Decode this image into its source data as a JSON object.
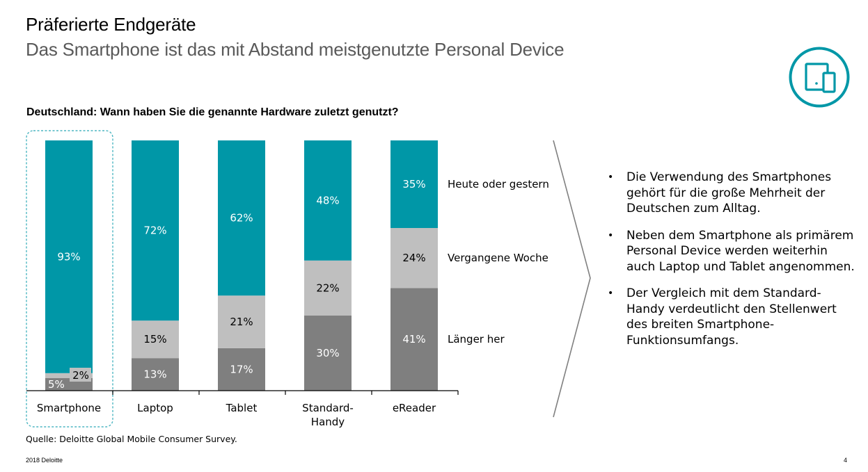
{
  "header": {
    "title": "Präferierte Endgeräte",
    "subtitle": "Das Smartphone ist das mit Abstand meistgenutzte Personal Device",
    "icon": "tablet-phone-icon"
  },
  "colors": {
    "accent": "#0097A7",
    "heute": "#0097A7",
    "woche": "#BFBFBF",
    "laenger": "#7F7F7F",
    "highlight_border": "#4DB6C2",
    "divider": "#808080"
  },
  "chart_data": {
    "type": "bar",
    "stacked": true,
    "title": "Deutschland: Wann haben Sie die genannte Hardware zuletzt genutzt?",
    "xlabel": "",
    "ylabel": "",
    "ylim": [
      0,
      100
    ],
    "unit": "%",
    "categories": [
      "Smartphone",
      "Laptop",
      "Tablet",
      "Standard-\nHandy",
      "eReader"
    ],
    "series": [
      {
        "name": "Länger her",
        "values": [
          5,
          13,
          17,
          30,
          41
        ],
        "label_color": "#FFFFFF"
      },
      {
        "name": "Vergangene Woche",
        "values": [
          2,
          15,
          21,
          22,
          24
        ],
        "label_color": "#000000"
      },
      {
        "name": "Heute oder gestern",
        "values": [
          93,
          72,
          62,
          48,
          35
        ],
        "label_color": "#FFFFFF"
      }
    ],
    "highlighted_category": "Smartphone",
    "legend_placement": "right",
    "grid": false
  },
  "bullets": [
    "Die Verwendung des Smartphones gehört für die große Mehrheit der Deutschen zum Alltag.",
    "Neben dem Smartphone als primärem Personal Device werden weiterhin auch Laptop und Tablet angenommen.",
    "Der Vergleich mit dem Standard-Handy verdeutlicht den Stellenwert des breiten Smartphone-Funktionsumfangs."
  ],
  "footer": {
    "source": "Quelle: Deloitte Global Mobile Consumer Survey.",
    "copyright": "2018 Deloitte",
    "page": "4"
  }
}
